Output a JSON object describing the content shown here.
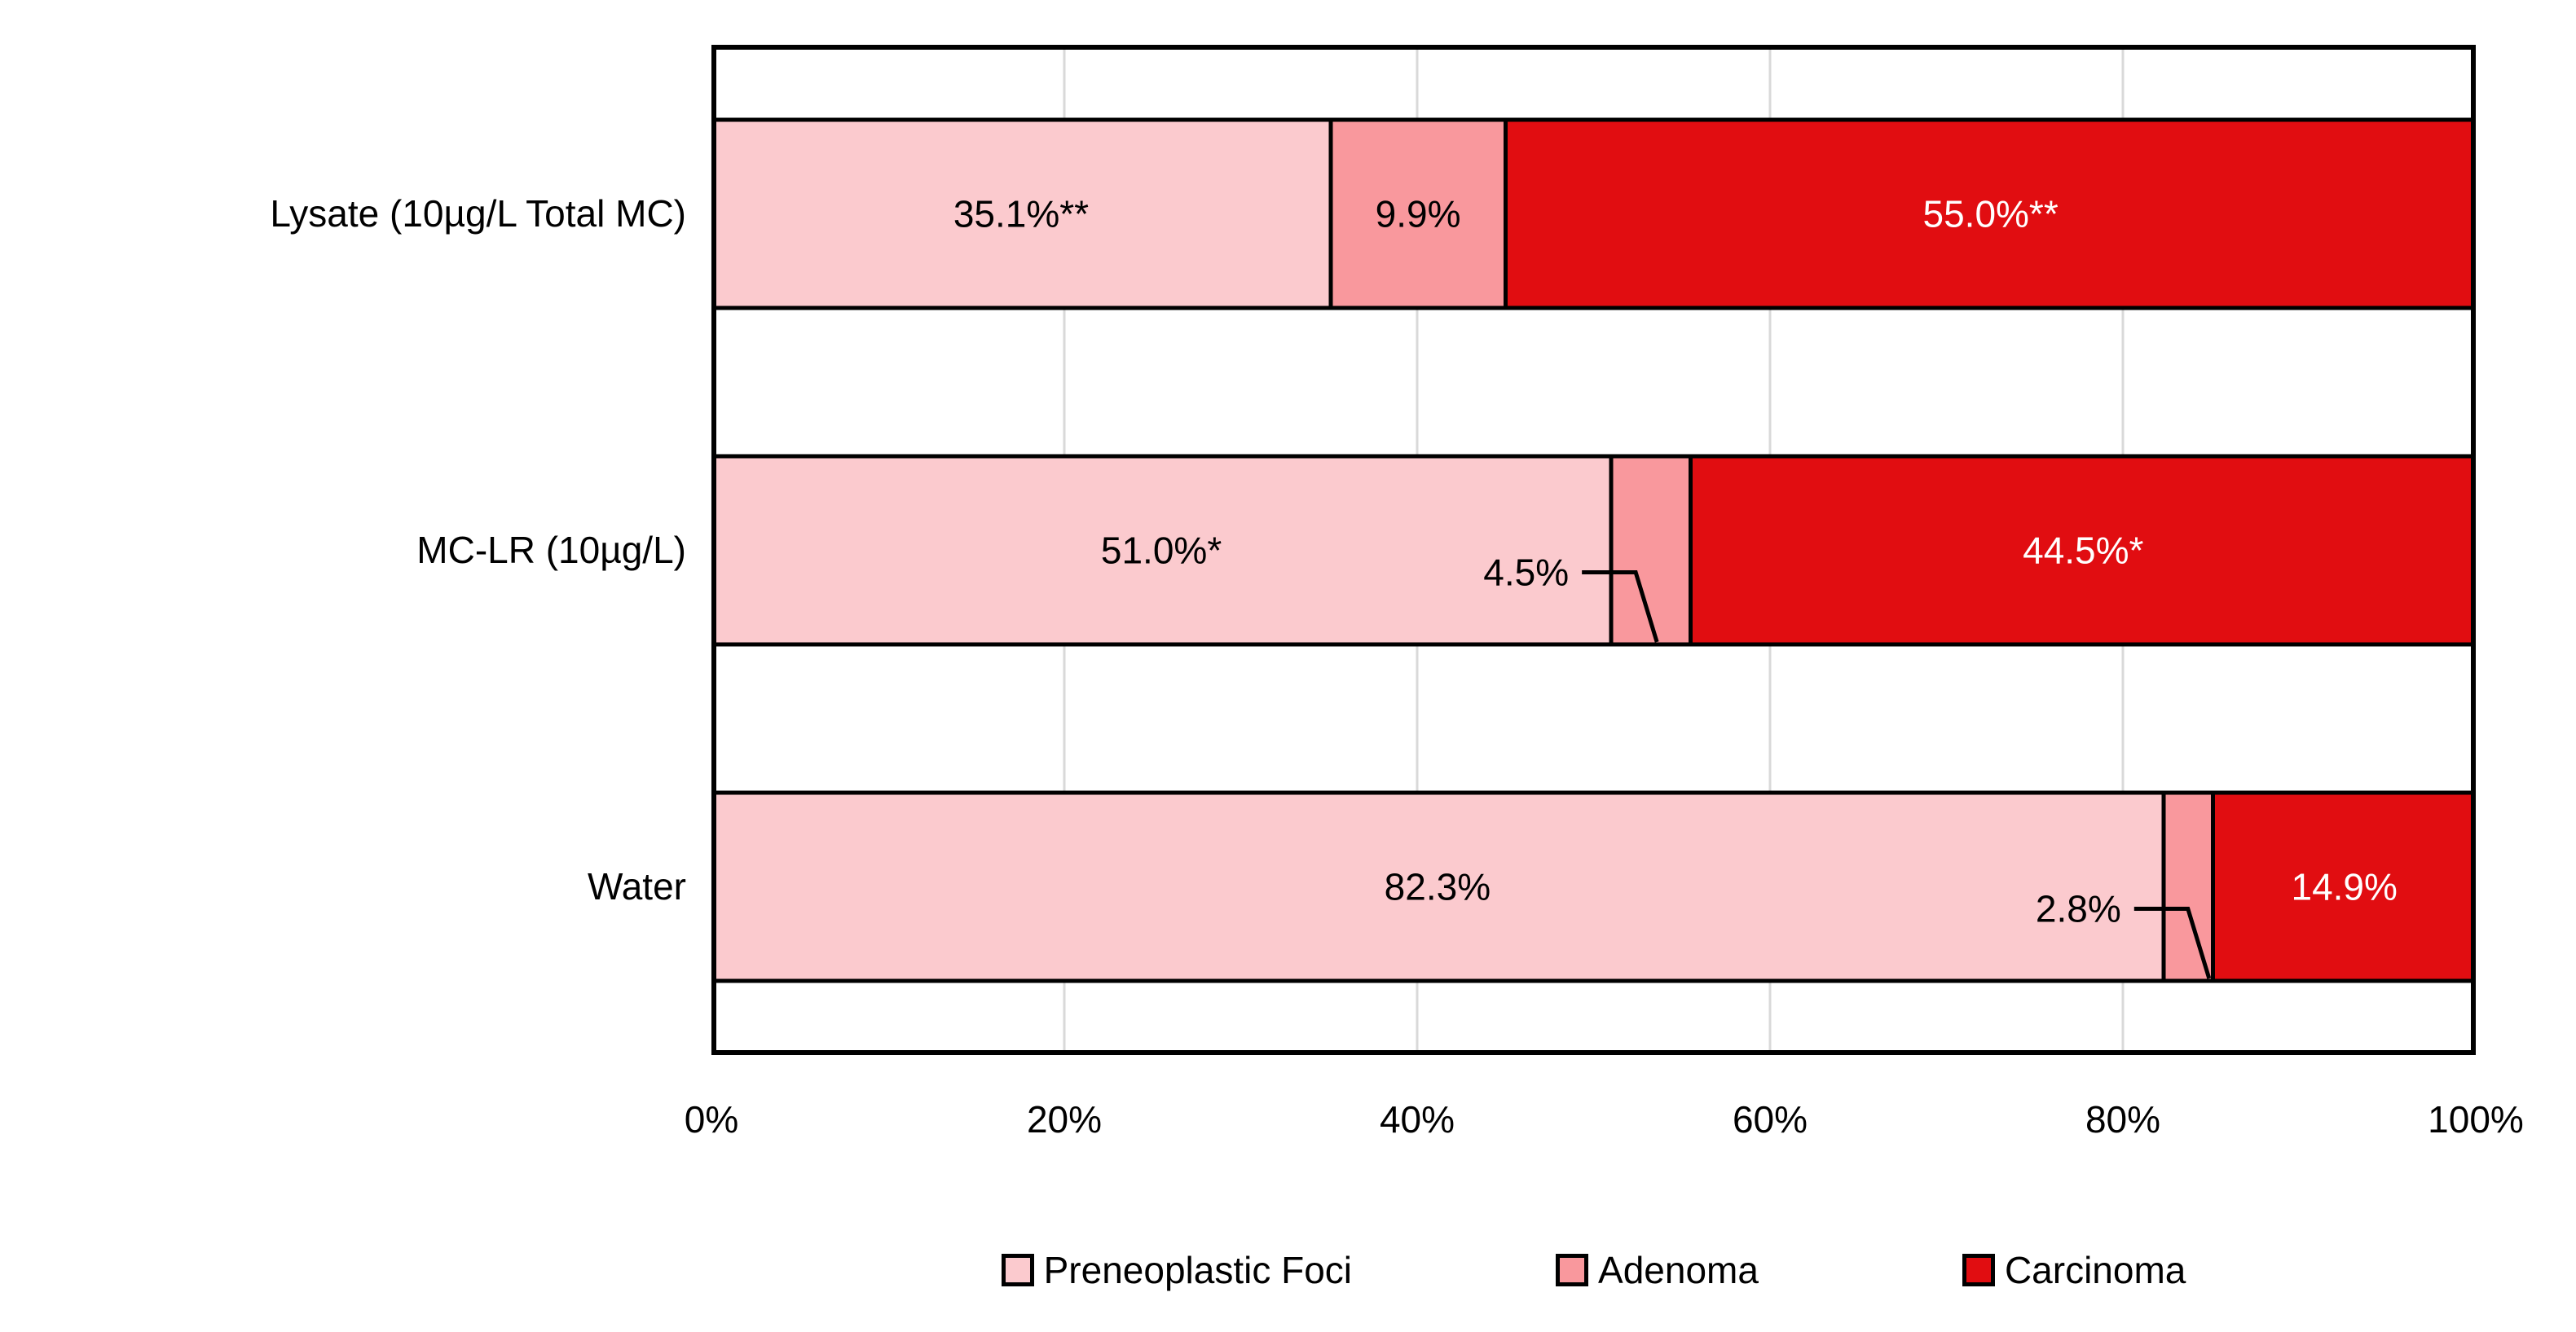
{
  "figure": {
    "background_color": "#FFFFFF",
    "plot_border_color": "#000000",
    "gridline_color": "#D9D9D9"
  },
  "chart_data": {
    "type": "bar",
    "orientation": "horizontal",
    "stacked": true,
    "title": "",
    "xlabel": "",
    "ylabel": "",
    "xlim": [
      0,
      100
    ],
    "x_ticks": [
      "0%",
      "20%",
      "40%",
      "60%",
      "80%",
      "100%"
    ],
    "grid": "vertical-major",
    "legend_position": "bottom",
    "categories": [
      "Lysate (10µg/L Total MC)",
      "MC-LR (10µg/L)",
      "Water"
    ],
    "series": [
      {
        "name": "Preneoplastic Foci",
        "color": "#FBCACE",
        "label_color": "#000000",
        "values": [
          35.1,
          51.0,
          82.3
        ],
        "data_labels": [
          "35.1%**",
          "51.0%*",
          "82.3%"
        ],
        "label_placement": [
          "inside",
          "inside",
          "inside"
        ]
      },
      {
        "name": "Adenoma",
        "color": "#F9989D",
        "label_color": "#000000",
        "values": [
          9.9,
          4.5,
          2.8
        ],
        "data_labels": [
          "9.9%",
          "4.5%",
          "2.8%"
        ],
        "label_placement": [
          "inside",
          "callout",
          "callout"
        ]
      },
      {
        "name": "Carcinoma",
        "color": "#E10D11",
        "label_color": "#FFFFFF",
        "values": [
          55.0,
          44.5,
          14.9
        ],
        "data_labels": [
          "55.0%**",
          "44.5%*",
          "14.9%"
        ],
        "label_placement": [
          "inside",
          "inside",
          "inside"
        ]
      }
    ]
  }
}
